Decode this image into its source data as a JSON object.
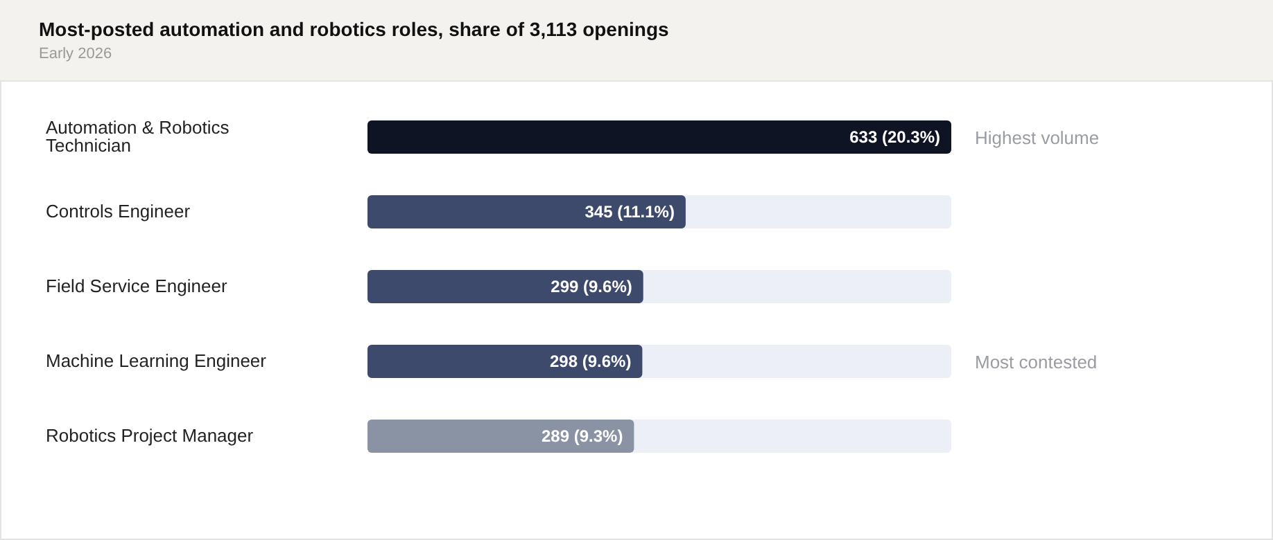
{
  "chart_data": {
    "type": "bar",
    "orientation": "horizontal",
    "title": "Most-posted automation and robotics roles, share of 3,113 openings",
    "subtitle": "Early 2026",
    "categories": [
      "Automation & Robotics Technician",
      "Controls Engineer",
      "Field Service Engineer",
      "Machine Learning Engineer",
      "Robotics Project Manager"
    ],
    "values": [
      633,
      345,
      299,
      298,
      289
    ],
    "colors": [
      "#0f1425",
      "#3d4a6b",
      "#3d4a6b",
      "#3d4a6b",
      "#8a93a3"
    ],
    "value_labels": [
      "633 (20.3%)",
      "345 (11.1%)",
      "299 (9.6%)",
      "298 (9.6%)",
      "289 (9.3%)"
    ],
    "annotations": [
      "Highest volume",
      "Most contested"
    ],
    "grid": false
  }
}
